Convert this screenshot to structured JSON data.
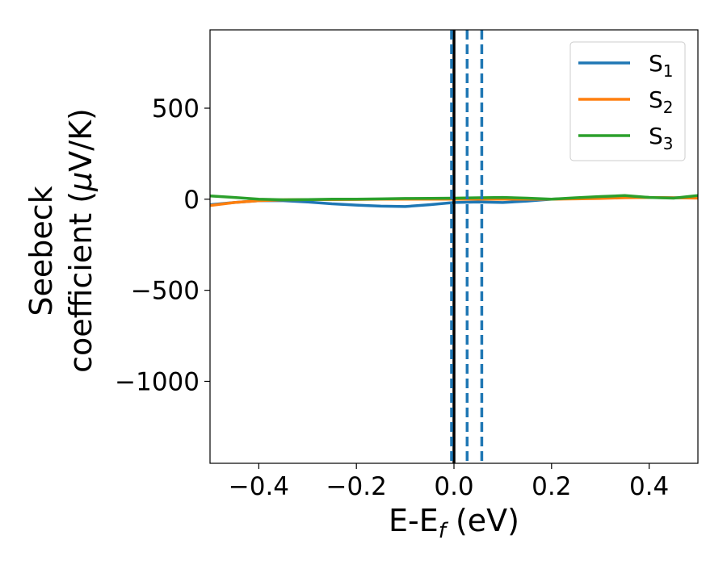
{
  "chart_data": {
    "type": "line",
    "title": "",
    "xlabel": "E-E",
    "xlabel_sub": "f",
    "xlabel_unit": " (eV)",
    "ylabel_line1": "Seebeck",
    "ylabel_line2": "coefficient  (",
    "ylabel_mu": "μ",
    "ylabel_unit": "V/K)",
    "xlim": [
      -0.5,
      0.5
    ],
    "ylim": [
      -1450,
      930
    ],
    "xticks": [
      -0.4,
      -0.2,
      0.0,
      0.2,
      0.4
    ],
    "xtick_labels": [
      "−0.4",
      "−0.2",
      "0.0",
      "0.2",
      "0.4"
    ],
    "yticks": [
      500,
      0,
      -500,
      -1000
    ],
    "ytick_labels": [
      "500",
      "0",
      "−500",
      "−1000"
    ],
    "grid": false,
    "legend_position": "top-right",
    "series": [
      {
        "name": "S",
        "subscript": "1",
        "color": "#1f77b4",
        "x": [
          -0.5,
          -0.45,
          -0.4,
          -0.35,
          -0.3,
          -0.25,
          -0.2,
          -0.15,
          -0.1,
          -0.05,
          0.0,
          0.05,
          0.1,
          0.15,
          0.2,
          0.25,
          0.3,
          0.35,
          0.4,
          0.45,
          0.5
        ],
        "y": [
          -30,
          -18,
          -8,
          -8,
          -15,
          -25,
          -32,
          -38,
          -40,
          -30,
          -18,
          -15,
          -18,
          -10,
          0,
          5,
          12,
          15,
          10,
          8,
          8
        ]
      },
      {
        "name": "S",
        "subscript": "2",
        "color": "#ff7f0e",
        "x": [
          -0.5,
          -0.45,
          -0.4,
          -0.35,
          -0.3,
          -0.25,
          -0.2,
          -0.15,
          -0.1,
          -0.05,
          0.0,
          0.05,
          0.1,
          0.15,
          0.2,
          0.25,
          0.3,
          0.35,
          0.4,
          0.45,
          0.5
        ],
        "y": [
          -35,
          -18,
          -8,
          -3,
          -2,
          -2,
          -1,
          0,
          0,
          0,
          0,
          0,
          0,
          0,
          0,
          2,
          4,
          8,
          10,
          8,
          6
        ]
      },
      {
        "name": "S",
        "subscript": "3",
        "color": "#2ca02c",
        "x": [
          -0.5,
          -0.45,
          -0.4,
          -0.35,
          -0.3,
          -0.25,
          -0.2,
          -0.15,
          -0.1,
          -0.05,
          0.0,
          0.05,
          0.1,
          0.15,
          0.2,
          0.25,
          0.3,
          0.35,
          0.4,
          0.45,
          0.5
        ],
        "y": [
          18,
          10,
          0,
          -3,
          -2,
          0,
          0,
          2,
          4,
          5,
          6,
          8,
          10,
          6,
          0,
          8,
          15,
          20,
          10,
          6,
          20
        ]
      }
    ],
    "vlines": [
      {
        "x": 0.0,
        "color": "#000000",
        "style": "solid"
      },
      {
        "x": -0.005,
        "color": "#1f77b4",
        "style": "dashed"
      },
      {
        "x": 0.027,
        "color": "#1f77b4",
        "style": "dashed"
      },
      {
        "x": 0.057,
        "color": "#1f77b4",
        "style": "dashed"
      }
    ]
  }
}
